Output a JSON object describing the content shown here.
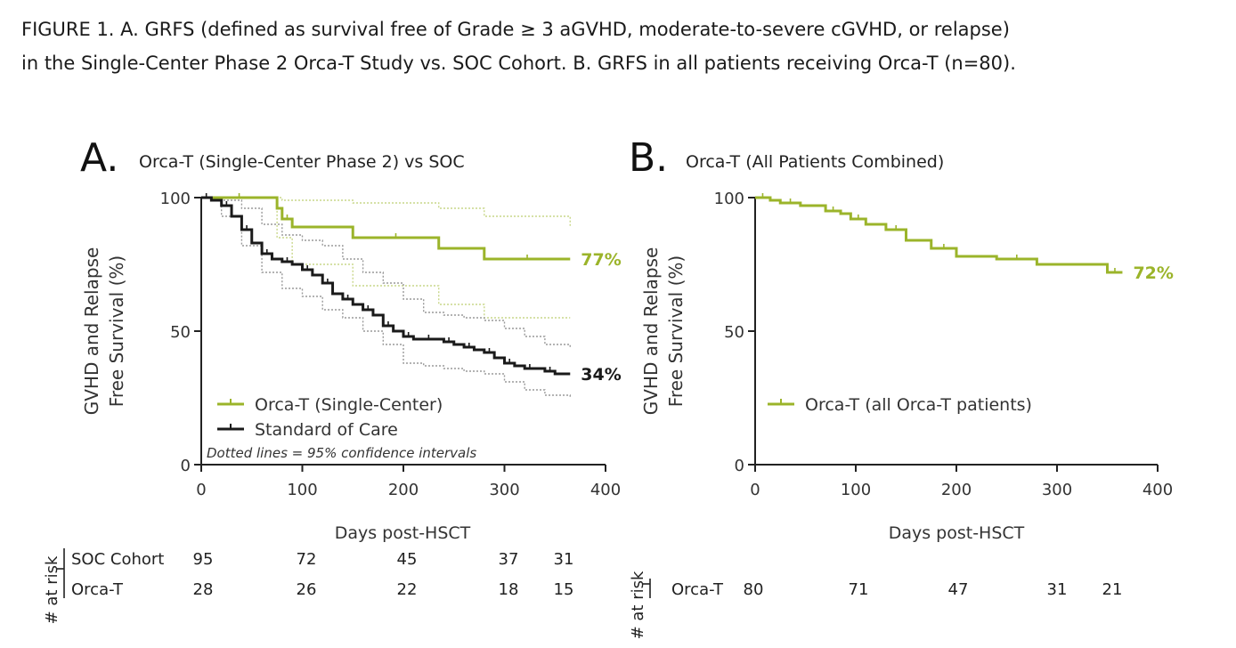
{
  "caption": {
    "line1": "FIGURE 1. A. GRFS (defined as survival free of Grade ≥ 3 aGVHD, moderate-to-severe cGVHD, or relapse)",
    "line2": "in the Single-Center Phase 2 Orca-T Study vs. SOC Cohort. B. GRFS in all patients receiving Orca-T (n=80)."
  },
  "colors": {
    "orca": "#9bb42a",
    "soc": "#1a1a1a",
    "axis": "#222222",
    "ci_orca": "#c9d78a",
    "ci_soc": "#9a9a9a"
  },
  "chart_data": [
    {
      "type": "line",
      "panel_letter": "A.",
      "title": "Orca-T (Single-Center Phase 2) vs SOC",
      "ylabel_line1": "GVHD and Relapse",
      "ylabel_line2": "Free Survival (%)",
      "xlabel": "Days post-HSCT",
      "xlim": [
        0,
        400
      ],
      "ylim": [
        0,
        100
      ],
      "xticks": [
        0,
        100,
        200,
        300,
        400
      ],
      "yticks": [
        0,
        50,
        100
      ],
      "grid": false,
      "legend_position": "bottom-left",
      "note": "Dotted lines = 95% confidence intervals",
      "series": [
        {
          "name": "Orca-T (Single-Center)",
          "color": "#9bb42a",
          "style": "step",
          "end_label": "77%",
          "x": [
            0,
            75,
            80,
            90,
            150,
            235,
            280,
            365
          ],
          "y": [
            100,
            96,
            92,
            89,
            85,
            81,
            77,
            77
          ],
          "ci_upper": {
            "x": [
              0,
              80,
              150,
              235,
              280,
              365
            ],
            "y": [
              100,
              99,
              98,
              96,
              93,
              89
            ]
          },
          "ci_lower": {
            "x": [
              0,
              75,
              90,
              150,
              235,
              280,
              365
            ],
            "y": [
              100,
              85,
              75,
              67,
              60,
              55,
              55
            ]
          }
        },
        {
          "name": "Standard of Care",
          "color": "#1a1a1a",
          "style": "step",
          "end_label": "34%",
          "x": [
            0,
            10,
            20,
            30,
            40,
            50,
            60,
            70,
            80,
            90,
            100,
            110,
            120,
            130,
            140,
            150,
            160,
            170,
            180,
            190,
            200,
            210,
            220,
            230,
            240,
            250,
            260,
            270,
            280,
            290,
            300,
            310,
            320,
            330,
            340,
            350,
            365
          ],
          "y": [
            100,
            99,
            97,
            93,
            88,
            83,
            79,
            77,
            76,
            75,
            73,
            71,
            68,
            64,
            62,
            60,
            58,
            56,
            52,
            50,
            48,
            47,
            47,
            47,
            46,
            45,
            44,
            43,
            42,
            40,
            38,
            37,
            36,
            36,
            35,
            34,
            34
          ],
          "ci_upper": {
            "x": [
              0,
              20,
              40,
              60,
              80,
              100,
              120,
              140,
              160,
              180,
              200,
              220,
              240,
              260,
              280,
              300,
              320,
              340,
              365
            ],
            "y": [
              100,
              99,
              96,
              90,
              86,
              84,
              82,
              77,
              72,
              68,
              62,
              57,
              56,
              55,
              54,
              51,
              48,
              45,
              44
            ]
          },
          "ci_lower": {
            "x": [
              0,
              20,
              40,
              60,
              80,
              100,
              120,
              140,
              160,
              180,
              200,
              220,
              240,
              260,
              280,
              300,
              320,
              340,
              365
            ],
            "y": [
              100,
              93,
              82,
              72,
              66,
              63,
              58,
              55,
              50,
              45,
              38,
              37,
              36,
              35,
              34,
              31,
              28,
              26,
              25
            ]
          }
        }
      ],
      "risk_table": {
        "label": "# at risk",
        "timepoints": [
          0,
          100,
          200,
          300,
          365
        ],
        "rows": [
          {
            "name": "SOC Cohort",
            "values": [
              "95",
              "72",
              "45",
              "37",
              "31"
            ]
          },
          {
            "name": "Orca-T",
            "values": [
              "28",
              "26",
              "22",
              "18",
              "15"
            ]
          }
        ]
      }
    },
    {
      "type": "line",
      "panel_letter": "B.",
      "title": "Orca-T (All Patients Combined)",
      "ylabel_line1": "GVHD and Relapse",
      "ylabel_line2": "Free Survival (%)",
      "xlabel": "Days post-HSCT",
      "xlim": [
        0,
        400
      ],
      "ylim": [
        0,
        100
      ],
      "xticks": [
        0,
        100,
        200,
        300,
        400
      ],
      "yticks": [
        0,
        50,
        100
      ],
      "grid": false,
      "legend_position": "bottom-left",
      "series": [
        {
          "name": "Orca-T (all Orca-T patients)",
          "color": "#9bb42a",
          "style": "step",
          "end_label": "72%",
          "x": [
            0,
            15,
            25,
            45,
            70,
            85,
            95,
            110,
            130,
            150,
            175,
            200,
            240,
            280,
            350,
            365
          ],
          "y": [
            100,
            99,
            98,
            97,
            95,
            94,
            92,
            90,
            88,
            84,
            81,
            78,
            77,
            75,
            72,
            72
          ]
        }
      ],
      "risk_table": {
        "label": "# at risk",
        "timepoints": [
          0,
          100,
          200,
          300,
          365
        ],
        "rows": [
          {
            "name": "Orca-T",
            "values": [
              "80",
              "71",
              "47",
              "31",
              "21"
            ]
          }
        ]
      }
    }
  ]
}
